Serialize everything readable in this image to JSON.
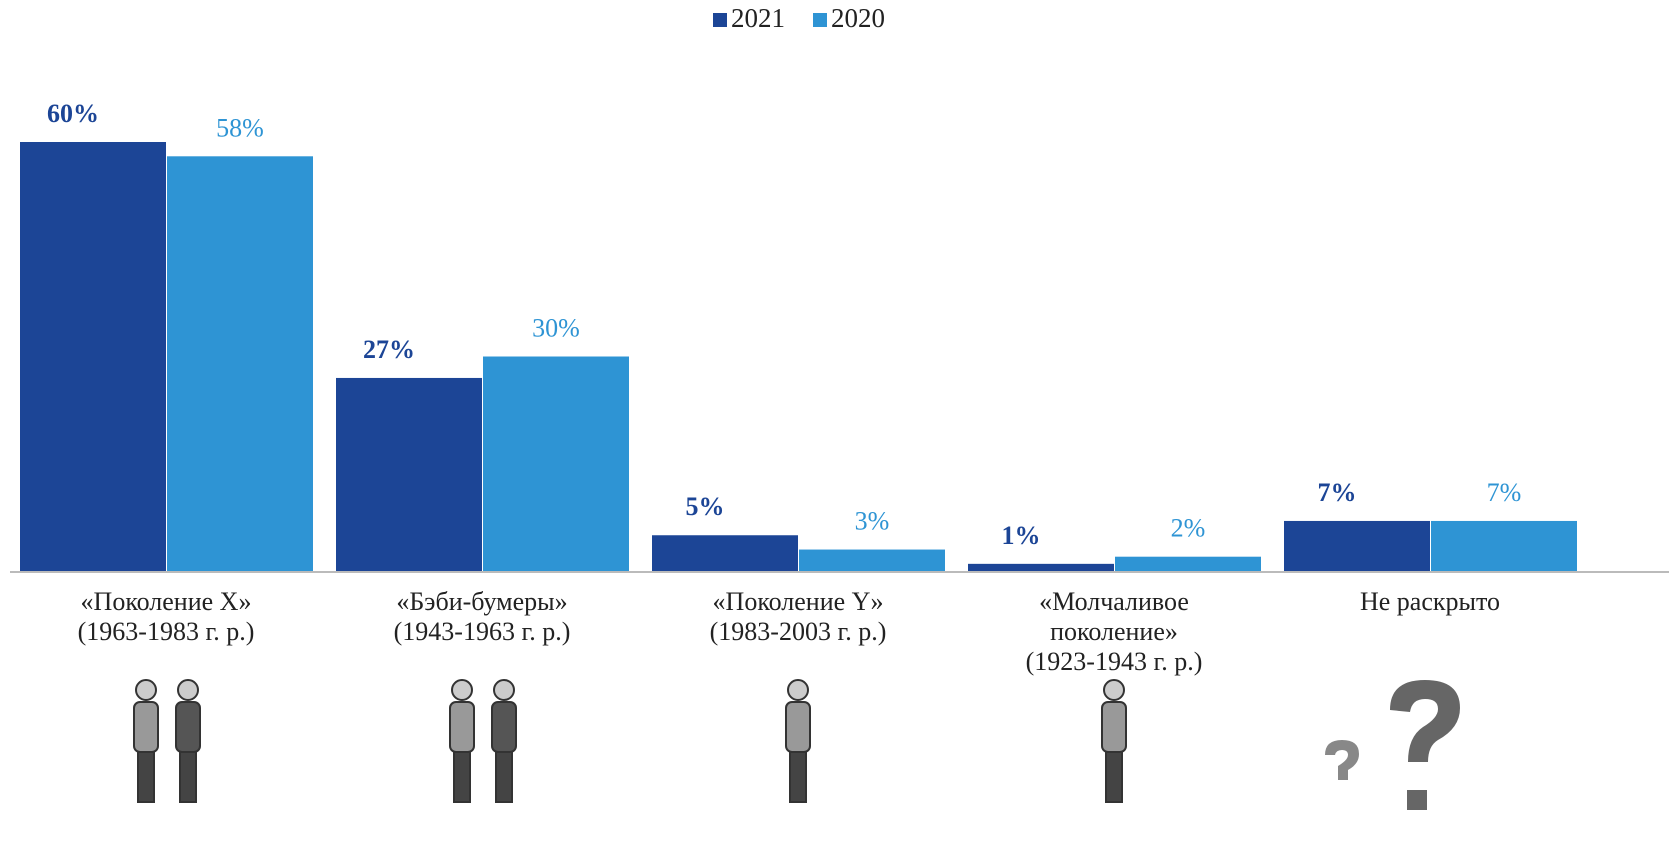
{
  "chart_data": {
    "type": "bar",
    "categories": [
      [
        "«Поколение X»",
        "(1963-1983 г. р.)"
      ],
      [
        "«Бэби-бумеры»",
        "(1943-1963 г. р.)"
      ],
      [
        "«Поколение Y»",
        "(1983-2003 г. р.)"
      ],
      [
        "«Молчаливое",
        "поколение»",
        "(1923-1943 г. р.)"
      ],
      [
        "Не раскрыто"
      ]
    ],
    "series": [
      {
        "name": "2021",
        "color": "#1c4596",
        "values": [
          60,
          27,
          5,
          1,
          7
        ],
        "value_labels": [
          "60%",
          "27%",
          "5%",
          "1%",
          "7%"
        ]
      },
      {
        "name": "2020",
        "color": "#2e94d4",
        "values": [
          58,
          30,
          3,
          2,
          7
        ],
        "value_labels": [
          "58%",
          "30%",
          "3%",
          "2%",
          "7%"
        ]
      }
    ]
  }
}
